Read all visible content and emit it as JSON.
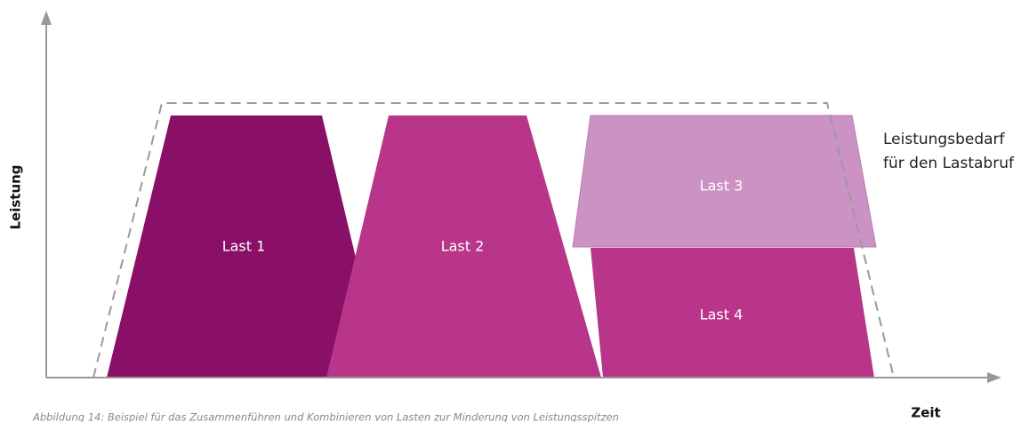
{
  "axes": {
    "y_label": "Leistung",
    "x_label": "Zeit"
  },
  "loads": [
    {
      "label": "Last 1"
    },
    {
      "label": "Last 2"
    },
    {
      "label": "Last 3"
    },
    {
      "label": "Last 4"
    }
  ],
  "annotation": {
    "lines": [
      "Leistungsbedarf",
      "für den Lastabruf"
    ]
  },
  "caption": "Abbildung 14: Beispiel für das Zusammenführen und Kombinieren von Lasten zur Minderung von Leistungsspitzen"
}
